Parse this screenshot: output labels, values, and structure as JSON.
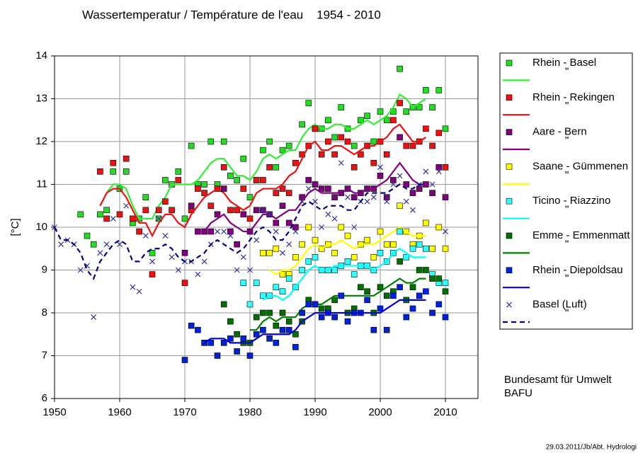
{
  "chart_data": {
    "type": "scatter",
    "title": "Wassertemperatur / Température de l'eau    1954 - 2010",
    "ylabel": "[°C]",
    "annotations": [
      "Bundesamt für Umwelt",
      "BAFU",
      "29.03.2011/Jb/Abt. Hydrologi"
    ],
    "xlim": [
      1950,
      2015
    ],
    "xticks": [
      1950,
      1960,
      1970,
      1980,
      1990,
      2000,
      2010
    ],
    "ylim": [
      6,
      14
    ],
    "yticks": [
      6,
      7,
      8,
      9,
      10,
      11,
      12,
      13,
      14
    ],
    "grid": true,
    "x": [
      1950,
      1951,
      1952,
      1953,
      1954,
      1955,
      1956,
      1957,
      1958,
      1959,
      1960,
      1961,
      1962,
      1963,
      1964,
      1965,
      1966,
      1967,
      1968,
      1969,
      1970,
      1971,
      1972,
      1973,
      1974,
      1975,
      1976,
      1977,
      1978,
      1979,
      1980,
      1981,
      1982,
      1983,
      1984,
      1985,
      1986,
      1987,
      1988,
      1989,
      1990,
      1991,
      1992,
      1993,
      1994,
      1995,
      1996,
      1997,
      1998,
      1999,
      2000,
      2001,
      2002,
      2003,
      2004,
      2005,
      2006,
      2007,
      2008,
      2009,
      2010
    ],
    "series": [
      {
        "name": "Rhein - Basel",
        "style": "square",
        "color": "#22dd22",
        "values": [
          null,
          null,
          null,
          null,
          10.3,
          9.8,
          9.6,
          10.3,
          10.4,
          11.3,
          10.9,
          11.3,
          10.1,
          10.2,
          10.7,
          9.4,
          10.2,
          11.1,
          11.0,
          11.3,
          10.2,
          11.9,
          11.0,
          11.0,
          12.0,
          11.0,
          12.0,
          11.2,
          11.1,
          11.6,
          10.7,
          11.1,
          11.8,
          12.0,
          11.4,
          11.8,
          11.9,
          11.5,
          12.4,
          12.9,
          12.3,
          12.3,
          12.5,
          12.1,
          12.8,
          12.3,
          11.9,
          12.5,
          12.6,
          12.0,
          12.7,
          12.5,
          12.7,
          13.7,
          12.7,
          12.8,
          12.8,
          13.2,
          12.8,
          13.2,
          12.3
        ]
      },
      {
        "name": "\"",
        "style": "line",
        "color": "#33ee33",
        "values": [
          null,
          null,
          null,
          null,
          null,
          null,
          null,
          null,
          10.8,
          11.0,
          11.0,
          10.9,
          10.5,
          10.2,
          10.2,
          10.2,
          10.5,
          10.7,
          11.0,
          11.0,
          11.0,
          11.0,
          11.1,
          11.3,
          11.5,
          11.6,
          11.6,
          11.4,
          11.2,
          11.2,
          11.1,
          11.3,
          11.6,
          11.7,
          11.6,
          11.7,
          11.8,
          11.8,
          12.1,
          12.3,
          12.4,
          12.3,
          12.3,
          12.4,
          12.4,
          12.3,
          12.3,
          12.4,
          12.5,
          12.4,
          12.5,
          12.6,
          12.8,
          13.1,
          13.0,
          12.8,
          12.9,
          13.0,
          null,
          null,
          null
        ]
      },
      {
        "name": "Rhein - Rekingen",
        "style": "square",
        "color": "#ee1111",
        "values": [
          null,
          null,
          null,
          null,
          null,
          null,
          null,
          11.3,
          10.2,
          11.5,
          10.3,
          11.6,
          10.2,
          9.9,
          10.4,
          8.9,
          10.4,
          10.6,
          10.4,
          11.1,
          8.7,
          10.4,
          10.9,
          10.8,
          10.5,
          10.9,
          11.4,
          10.4,
          10.4,
          10.9,
          10.2,
          11.1,
          11.1,
          11.4,
          10.8,
          10.9,
          10.8,
          11.5,
          11.7,
          11.9,
          12.3,
          11.7,
          12.0,
          11.7,
          12.1,
          12.0,
          11.4,
          11.7,
          11.9,
          11.5,
          12.0,
          11.7,
          12.5,
          12.9,
          11.9,
          11.9,
          12.0,
          12.3,
          11.9,
          12.2,
          11.4
        ]
      },
      {
        "name": "\"",
        "style": "line",
        "color": "#ee1111",
        "values": [
          null,
          null,
          null,
          null,
          null,
          null,
          null,
          10.5,
          10.8,
          10.9,
          10.9,
          10.7,
          10.4,
          10.1,
          10.1,
          9.8,
          10.1,
          10.3,
          10.3,
          10.1,
          10.0,
          10.3,
          10.5,
          10.7,
          10.8,
          10.9,
          10.8,
          10.6,
          10.5,
          10.4,
          10.5,
          10.8,
          10.9,
          10.9,
          10.9,
          11.0,
          11.2,
          11.3,
          11.6,
          11.9,
          12.0,
          11.8,
          11.8,
          11.9,
          11.9,
          11.8,
          11.7,
          11.8,
          11.9,
          11.9,
          12.0,
          12.1,
          12.3,
          12.4,
          12.2,
          12.0,
          12.0,
          12.1,
          null,
          null,
          null
        ]
      },
      {
        "name": "Aare - Bern",
        "style": "square",
        "color": "#800080",
        "values": [
          null,
          null,
          null,
          null,
          null,
          null,
          null,
          null,
          null,
          null,
          null,
          null,
          null,
          null,
          null,
          null,
          null,
          null,
          null,
          null,
          9.4,
          10.5,
          9.9,
          9.9,
          9.9,
          10.3,
          10.9,
          9.9,
          9.6,
          10.3,
          9.9,
          10.4,
          10.4,
          10.3,
          10.1,
          10.5,
          10.1,
          10.0,
          10.7,
          11.1,
          11.0,
          10.9,
          10.9,
          10.7,
          10.8,
          10.9,
          10.7,
          10.8,
          10.9,
          10.9,
          11.2,
          10.7,
          11.1,
          12.1,
          11.0,
          10.8,
          10.9,
          11.0,
          10.8,
          11.4,
          10.7
        ]
      },
      {
        "name": "\"",
        "style": "line",
        "color": "#800080",
        "values": [
          null,
          null,
          null,
          null,
          null,
          null,
          null,
          null,
          null,
          null,
          null,
          null,
          null,
          null,
          null,
          null,
          null,
          null,
          null,
          null,
          null,
          null,
          null,
          9.9,
          10.1,
          10.2,
          10.3,
          10.1,
          10.0,
          9.9,
          9.9,
          10.1,
          10.3,
          10.3,
          10.2,
          10.3,
          10.4,
          10.4,
          10.6,
          10.8,
          10.9,
          10.8,
          10.8,
          10.8,
          10.8,
          10.9,
          10.8,
          10.8,
          10.9,
          10.9,
          11.0,
          11.1,
          11.3,
          11.5,
          11.3,
          11.1,
          11.0,
          11.0,
          null,
          null,
          null
        ]
      },
      {
        "name": "Saane - Gümmenen",
        "style": "square",
        "color": "#ffff00",
        "values": [
          null,
          null,
          null,
          null,
          null,
          null,
          null,
          null,
          null,
          null,
          null,
          null,
          null,
          null,
          null,
          null,
          null,
          null,
          null,
          null,
          null,
          null,
          null,
          null,
          null,
          null,
          null,
          null,
          null,
          null,
          null,
          null,
          9.4,
          9.4,
          9.5,
          8.9,
          8.9,
          9.3,
          9.6,
          10.0,
          9.7,
          9.5,
          9.6,
          9.4,
          10.0,
          9.8,
          9.3,
          9.6,
          9.7,
          9.3,
          9.9,
          9.6,
          9.6,
          10.5,
          9.9,
          9.6,
          9.8,
          10.1,
          9.5,
          10.0,
          9.5
        ]
      },
      {
        "name": "\"",
        "style": "line",
        "color": "#ffff00",
        "values": [
          null,
          null,
          null,
          null,
          null,
          null,
          null,
          null,
          null,
          null,
          null,
          null,
          null,
          null,
          null,
          null,
          null,
          null,
          null,
          null,
          null,
          null,
          null,
          null,
          null,
          null,
          null,
          null,
          null,
          null,
          null,
          null,
          null,
          9.0,
          8.9,
          9.0,
          9.0,
          9.1,
          9.3,
          9.5,
          9.6,
          9.5,
          9.6,
          9.6,
          9.7,
          9.6,
          9.5,
          9.6,
          9.6,
          9.6,
          9.7,
          9.8,
          9.9,
          10.0,
          9.9,
          9.8,
          9.8,
          9.8,
          null,
          null,
          null
        ]
      },
      {
        "name": "Ticino - Riazzino",
        "style": "square",
        "color": "#33ffff",
        "values": [
          null,
          null,
          null,
          null,
          null,
          null,
          null,
          null,
          null,
          null,
          null,
          null,
          null,
          null,
          null,
          null,
          null,
          null,
          null,
          null,
          null,
          null,
          null,
          null,
          null,
          null,
          null,
          null,
          null,
          8.7,
          8.2,
          8.7,
          8.4,
          8.4,
          8.6,
          8.5,
          8.8,
          8.6,
          9.0,
          9.2,
          9.3,
          9.0,
          9.0,
          9.0,
          9.1,
          9.2,
          8.9,
          9.1,
          9.1,
          9.0,
          9.4,
          9.2,
          9.4,
          9.9,
          9.3,
          9.5,
          9.6,
          9.5,
          8.9,
          8.7,
          8.7
        ]
      },
      {
        "name": "\"",
        "style": "line",
        "color": "#00ffff",
        "values": [
          null,
          null,
          null,
          null,
          null,
          null,
          null,
          null,
          null,
          null,
          null,
          null,
          null,
          null,
          null,
          null,
          null,
          null,
          null,
          null,
          null,
          null,
          null,
          null,
          null,
          null,
          null,
          null,
          null,
          null,
          null,
          null,
          8.3,
          8.4,
          8.4,
          8.3,
          8.4,
          8.6,
          8.8,
          9.0,
          9.1,
          9.0,
          9.0,
          9.1,
          9.1,
          9.1,
          9.1,
          9.1,
          9.1,
          9.0,
          9.1,
          9.2,
          9.4,
          9.5,
          9.4,
          9.3,
          9.3,
          9.3,
          null,
          null,
          null
        ]
      },
      {
        "name": "Emme - Emmenmatt",
        "style": "square",
        "color": "#007000",
        "values": [
          null,
          null,
          null,
          null,
          null,
          null,
          null,
          null,
          null,
          null,
          null,
          null,
          null,
          null,
          null,
          null,
          null,
          null,
          null,
          null,
          null,
          null,
          null,
          null,
          null,
          null,
          8.2,
          7.8,
          7.5,
          7.3,
          7.3,
          7.9,
          8.0,
          8.0,
          7.7,
          8.0,
          7.8,
          7.5,
          7.8,
          8.3,
          8.2,
          8.1,
          8.1,
          8.3,
          8.4,
          8.0,
          8.1,
          8.6,
          8.5,
          8.0,
          8.6,
          8.4,
          8.5,
          9.2,
          8.3,
          8.6,
          9.0,
          9.0,
          8.8,
          8.8,
          8.5
        ]
      },
      {
        "name": "\"",
        "style": "line",
        "color": "#008000",
        "values": [
          null,
          null,
          null,
          null,
          null,
          null,
          null,
          null,
          null,
          null,
          null,
          null,
          null,
          null,
          null,
          null,
          null,
          null,
          null,
          null,
          null,
          null,
          null,
          null,
          null,
          null,
          null,
          null,
          null,
          null,
          7.6,
          7.6,
          7.8,
          7.9,
          7.8,
          7.9,
          7.9,
          7.9,
          8.1,
          8.2,
          8.2,
          8.2,
          8.3,
          8.4,
          8.4,
          8.4,
          8.4,
          8.4,
          8.4,
          8.4,
          8.5,
          8.6,
          8.7,
          8.8,
          8.7,
          8.7,
          8.8,
          8.8,
          null,
          null,
          null
        ]
      },
      {
        "name": "Rhein - Diepoldsau",
        "style": "square",
        "color": "#0022dd",
        "values": [
          null,
          null,
          null,
          null,
          null,
          null,
          null,
          null,
          null,
          null,
          null,
          null,
          null,
          null,
          null,
          null,
          null,
          null,
          null,
          null,
          6.9,
          7.7,
          7.6,
          7.3,
          7.3,
          7.0,
          7.3,
          7.4,
          7.1,
          7.4,
          7.0,
          7.5,
          7.6,
          7.4,
          7.3,
          7.6,
          7.6,
          7.2,
          8.0,
          8.2,
          8.2,
          7.9,
          8.0,
          7.9,
          8.4,
          7.8,
          8.0,
          8.0,
          8.3,
          7.6,
          8.1,
          7.6,
          8.4,
          8.6,
          7.9,
          8.1,
          8.4,
          8.5,
          8.0,
          8.2,
          7.9
        ]
      },
      {
        "name": "\"",
        "style": "line",
        "color": "#0000dd",
        "values": [
          null,
          null,
          null,
          null,
          null,
          null,
          null,
          null,
          null,
          null,
          null,
          null,
          null,
          null,
          null,
          null,
          null,
          null,
          null,
          null,
          null,
          null,
          null,
          7.3,
          7.4,
          7.4,
          7.4,
          7.3,
          7.3,
          7.3,
          7.3,
          7.4,
          7.5,
          7.5,
          7.5,
          7.5,
          7.5,
          7.6,
          7.8,
          7.9,
          8.0,
          8.0,
          8.0,
          8.0,
          8.0,
          8.0,
          8.0,
          8.0,
          8.0,
          8.0,
          8.0,
          8.1,
          8.2,
          8.3,
          8.3,
          8.3,
          8.3,
          8.3,
          null,
          null,
          null
        ]
      },
      {
        "name": "Basel (Luft)",
        "style": "cross",
        "color": "#333399",
        "values": [
          10.0,
          9.6,
          9.7,
          9.6,
          9.0,
          9.1,
          7.9,
          9.4,
          9.6,
          10.2,
          9.6,
          10.5,
          8.6,
          8.5,
          9.8,
          9.2,
          10.2,
          9.8,
          9.3,
          9.0,
          9.2,
          9.2,
          8.9,
          9.2,
          9.6,
          9.9,
          9.9,
          9.8,
          9.0,
          9.3,
          9.0,
          9.7,
          10.4,
          10.3,
          9.9,
          9.4,
          9.6,
          9.9,
          10.6,
          10.9,
          10.6,
          10.0,
          10.3,
          10.2,
          11.5,
          10.7,
          10.0,
          10.6,
          10.6,
          10.7,
          11.4,
          10.6,
          11.0,
          11.2,
          10.6,
          10.4,
          11.0,
          11.3,
          11.0,
          11.3,
          9.9
        ]
      },
      {
        "name": "\"",
        "style": "dashed",
        "color": "#000080",
        "values": [
          10.0,
          9.7,
          9.7,
          9.6,
          9.4,
          9.0,
          8.8,
          9.2,
          9.4,
          9.6,
          9.7,
          9.6,
          9.2,
          9.2,
          9.4,
          9.5,
          9.5,
          9.6,
          9.5,
          9.3,
          9.2,
          9.2,
          9.3,
          9.4,
          9.6,
          9.7,
          9.6,
          9.5,
          9.4,
          9.5,
          9.7,
          9.9,
          10.0,
          9.9,
          9.7,
          9.7,
          9.9,
          10.2,
          10.5,
          10.6,
          10.5,
          10.4,
          10.5,
          10.5,
          10.5,
          10.4,
          10.4,
          10.6,
          10.8,
          10.8,
          10.8,
          10.8,
          10.9,
          11.0,
          10.9,
          10.9,
          11.0,
          11.0,
          null,
          null,
          null
        ]
      }
    ]
  }
}
